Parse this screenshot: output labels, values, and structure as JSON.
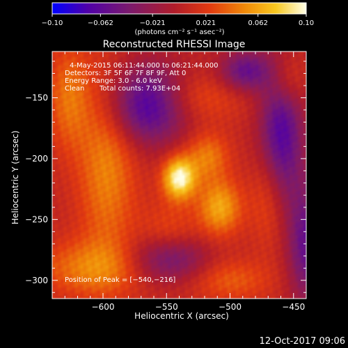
{
  "chart_data": {
    "type": "heatmap",
    "title": "Reconstructed RHESSI Image",
    "xlabel": "Heliocentric X (arcsec)",
    "ylabel": "Heliocentric Y (arcsec)",
    "xlim": [
      -640,
      -440
    ],
    "ylim": [
      -315,
      -112
    ],
    "x_ticks": [
      {
        "value": -600,
        "label": "−600"
      },
      {
        "value": -550,
        "label": "−550"
      },
      {
        "value": -500,
        "label": "−500"
      },
      {
        "value": -450,
        "label": "−450"
      }
    ],
    "y_ticks": [
      {
        "value": -150,
        "label": "−150"
      },
      {
        "value": -200,
        "label": "−200"
      },
      {
        "value": -250,
        "label": "−250"
      },
      {
        "value": -300,
        "label": "−300"
      }
    ],
    "colorbar": {
      "min": -0.1,
      "max": 0.1,
      "unit_label": "(photons cm⁻² s⁻¹ asec⁻²)",
      "ticks": [
        {
          "value": -0.1,
          "label": "−0.10"
        },
        {
          "value": -0.062,
          "label": "−0.062"
        },
        {
          "value": -0.021,
          "label": "−0.021"
        },
        {
          "value": 0.021,
          "label": "0.021"
        },
        {
          "value": 0.062,
          "label": "0.062"
        },
        {
          "value": 0.1,
          "label": "0.10"
        }
      ],
      "colors": [
        "#0000ff",
        "#5000a8",
        "#7a1a6e",
        "#b01c2a",
        "#e23a10",
        "#f08a08",
        "#f8c820",
        "#ffffe8"
      ],
      "stops": [
        0,
        0.14,
        0.3,
        0.48,
        0.62,
        0.76,
        0.88,
        1
      ]
    },
    "annotations": {
      "time_range": "4-May-2015 06:11:44.000 to 06:21:44.000",
      "detectors": "Detectors: 3F 5F 6F 7F 8F 9F, Att 0",
      "energy_range": "Energy Range: 3.0 - 6.0 keV",
      "clean_label": "Clean",
      "total_counts": "Total counts: 7.93E+04",
      "peak_position": "Position of Peak = [−540,−216]"
    },
    "peak": {
      "x": -540,
      "y": -216
    },
    "background_value": 0.005,
    "sources": [
      {
        "x": -540,
        "y": -216,
        "amp": 0.095,
        "sx": 9,
        "sy": 12
      },
      {
        "x": -508,
        "y": -240,
        "amp": 0.058,
        "sx": 12,
        "sy": 16
      },
      {
        "x": -518,
        "y": -198,
        "amp": 0.042,
        "sx": 12,
        "sy": 14
      },
      {
        "x": -597,
        "y": -205,
        "amp": 0.045,
        "sx": 16,
        "sy": 55
      },
      {
        "x": -627,
        "y": -150,
        "amp": 0.038,
        "sx": 12,
        "sy": 30
      },
      {
        "x": -610,
        "y": -290,
        "amp": 0.04,
        "sx": 30,
        "sy": 16
      },
      {
        "x": -548,
        "y": -268,
        "amp": 0.032,
        "sx": 16,
        "sy": 20
      },
      {
        "x": -530,
        "y": -150,
        "amp": 0.028,
        "sx": 28,
        "sy": 14
      },
      {
        "x": -470,
        "y": -230,
        "amp": 0.03,
        "sx": 10,
        "sy": 30
      },
      {
        "x": -500,
        "y": -300,
        "amp": 0.03,
        "sx": 22,
        "sy": 12
      },
      {
        "x": -455,
        "y": -135,
        "amp": 0.032,
        "sx": 10,
        "sy": 16
      },
      {
        "x": -565,
        "y": -155,
        "amp": -0.085,
        "sx": 22,
        "sy": 22
      },
      {
        "x": -548,
        "y": -282,
        "amp": -0.07,
        "sx": 20,
        "sy": 14
      },
      {
        "x": -488,
        "y": -128,
        "amp": -0.06,
        "sx": 14,
        "sy": 12
      },
      {
        "x": -460,
        "y": -180,
        "amp": -0.075,
        "sx": 12,
        "sy": 40
      },
      {
        "x": -440,
        "y": -270,
        "amp": -0.06,
        "sx": 10,
        "sy": 35
      }
    ]
  },
  "footer": {
    "timestamp": "12-Oct-2017 09:06"
  }
}
